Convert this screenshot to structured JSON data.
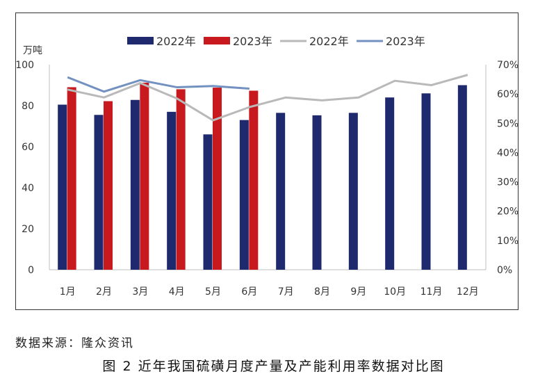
{
  "chart_data": {
    "type": "bar",
    "y_unit_label": "万吨",
    "categories": [
      "1月",
      "2月",
      "3月",
      "4月",
      "5月",
      "6月",
      "7月",
      "8月",
      "9月",
      "10月",
      "11月",
      "12月"
    ],
    "y_left": {
      "min": 0,
      "max": 100,
      "ticks": [
        "0",
        "20",
        "40",
        "60",
        "80",
        "100"
      ]
    },
    "y_right": {
      "min": 0,
      "max": 0.7,
      "ticks": [
        "0%",
        "10%",
        "20%",
        "30%",
        "40%",
        "50%",
        "60%",
        "70%"
      ]
    },
    "series": [
      {
        "name": "2022年",
        "kind": "bar",
        "axis": "left",
        "color": "#1f2a6e",
        "values": [
          80.5,
          75.5,
          82.8,
          77,
          66,
          73,
          76.5,
          75.3,
          76.5,
          84,
          86,
          90
        ]
      },
      {
        "name": "2023年",
        "kind": "bar",
        "axis": "left",
        "color": "#c8191e",
        "values": [
          89,
          82.2,
          91.2,
          88,
          88.8,
          87.3,
          null,
          null,
          null,
          null,
          null,
          null
        ]
      },
      {
        "name": "2022年",
        "kind": "line",
        "axis": "right",
        "color": "#b9b9b9",
        "values": [
          0.615,
          0.588,
          0.637,
          0.585,
          0.51,
          0.555,
          0.588,
          0.578,
          0.588,
          0.645,
          0.63,
          0.665
        ]
      },
      {
        "name": "2023年",
        "kind": "line",
        "axis": "right",
        "color": "#7391c0",
        "values": [
          0.657,
          0.608,
          0.647,
          0.623,
          0.627,
          0.618,
          null,
          null,
          null,
          null,
          null,
          null
        ]
      }
    ]
  },
  "source": "数据来源：隆众资讯",
  "caption": "图 2 近年我国硫磺月度产量及产能利用率数据对比图"
}
